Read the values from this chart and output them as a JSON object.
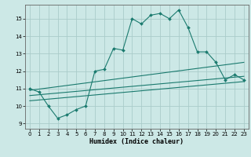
{
  "title": "",
  "xlabel": "Humidex (Indice chaleur)",
  "background_color": "#cce8e6",
  "grid_color": "#aaccca",
  "line_color": "#1a7a6e",
  "xlim": [
    -0.5,
    23.5
  ],
  "ylim": [
    8.7,
    15.8
  ],
  "yticks": [
    9,
    10,
    11,
    12,
    13,
    14,
    15
  ],
  "xticks": [
    0,
    1,
    2,
    3,
    4,
    5,
    6,
    7,
    8,
    9,
    10,
    11,
    12,
    13,
    14,
    15,
    16,
    17,
    18,
    19,
    20,
    21,
    22,
    23
  ],
  "line1_x": [
    0,
    1,
    2,
    3,
    4,
    5,
    6,
    7,
    8,
    9,
    10,
    11,
    12,
    13,
    14,
    15,
    16,
    17,
    18,
    19,
    20,
    21,
    22,
    23
  ],
  "line1_y": [
    11.0,
    10.8,
    10.0,
    9.3,
    9.5,
    9.8,
    10.0,
    12.0,
    12.1,
    13.3,
    13.2,
    15.0,
    14.7,
    15.2,
    15.3,
    15.0,
    15.5,
    14.5,
    13.1,
    13.1,
    12.5,
    11.5,
    11.8,
    11.5
  ],
  "line2_x": [
    0,
    23
  ],
  "line2_y": [
    10.9,
    12.5
  ],
  "line3_x": [
    0,
    23
  ],
  "line3_y": [
    10.6,
    11.7
  ],
  "line4_x": [
    0,
    23
  ],
  "line4_y": [
    10.3,
    11.4
  ]
}
